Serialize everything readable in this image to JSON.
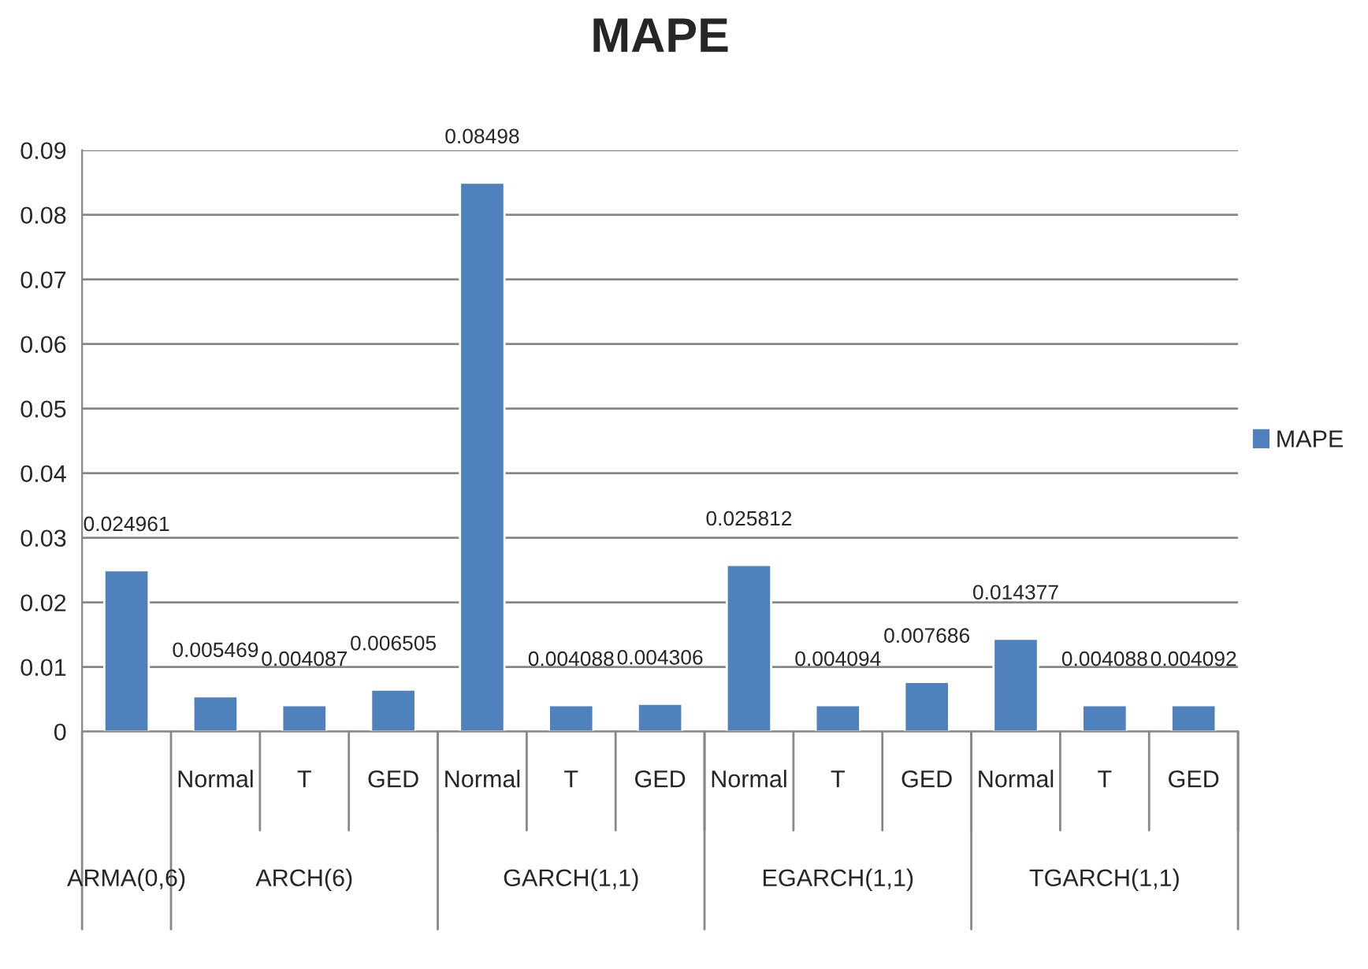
{
  "chart_data": {
    "type": "bar",
    "title": "MAPE",
    "categories": [
      null,
      "Normal",
      "T",
      "GED",
      "Normal",
      "T",
      "GED",
      "Normal",
      "T",
      "GED",
      "Normal",
      "T",
      "GED"
    ],
    "series": [
      {
        "name": "MAPE",
        "color": "#4f81bd",
        "values": [
          0.024961,
          0.005469,
          0.004087,
          0.006505,
          0.08498,
          0.004088,
          0.004306,
          0.025812,
          0.004094,
          0.007686,
          0.014377,
          0.004088,
          0.004092
        ]
      }
    ],
    "annotations": [
      "ARMA(0,6)",
      "ARCH(6)",
      "GARCH(1,1)",
      "EGARCH(1,1)",
      "TGARCH(1,1)"
    ],
    "ylim": [
      0,
      0.09
    ],
    "yticks": [
      0,
      0.01,
      0.02,
      0.03,
      0.04,
      0.05,
      0.06,
      0.07,
      0.08,
      0.09
    ],
    "grid": "y",
    "legend": "right",
    "data_labels": true
  }
}
